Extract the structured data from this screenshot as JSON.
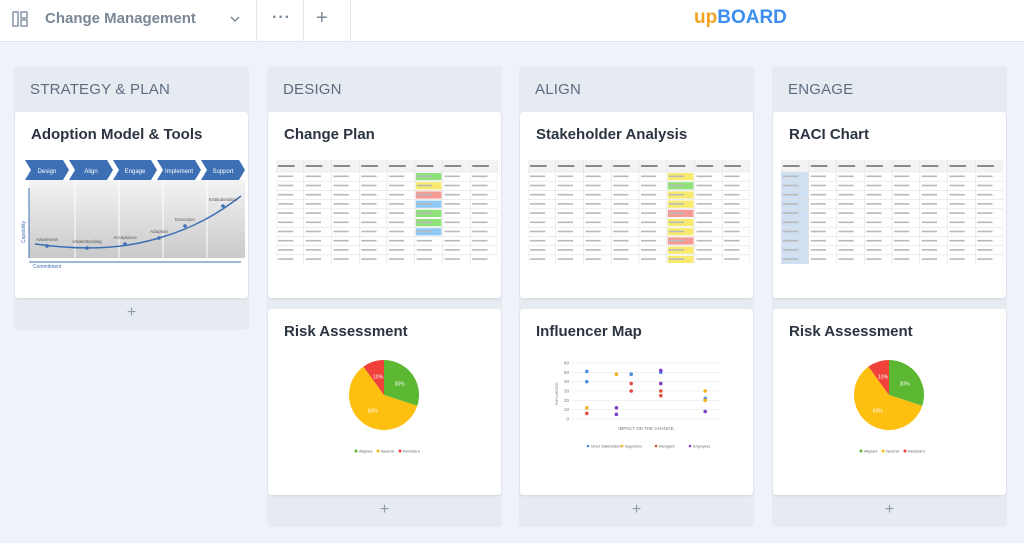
{
  "header": {
    "board_name": "Change Management",
    "logo": [
      "up",
      "BOARD"
    ]
  },
  "columns": [
    {
      "title": "STRATEGY & PLAN",
      "cards": [
        {
          "title": "Adoption Model & Tools",
          "thumbnail": {
            "type": "adoption",
            "steps": [
              "Design",
              "Align",
              "Engage",
              "Implement",
              "Support"
            ],
            "stages": [
              "Awareness",
              "Understanding",
              "Acceptance",
              "Adoption",
              "Execution",
              "Institutionalize"
            ],
            "y_label": "Capability",
            "x_label": "Commitment"
          }
        }
      ]
    },
    {
      "title": "DESIGN",
      "cards": [
        {
          "title": "Change Plan",
          "thumbnail": {
            "type": "table",
            "status_colors": [
              "#8fe27a",
              "#f7ea6e",
              "#f59b95",
              "#8fcaf7",
              "#8fe27a",
              "#8fe27a",
              "#8fcaf7"
            ]
          }
        },
        {
          "title": "Risk Assessment",
          "thumbnail": {
            "type": "pie",
            "values": [
              30,
              60,
              10
            ],
            "value_labels": [
              "30%",
              "60%",
              "10%"
            ],
            "colors": [
              "#5cb832",
              "#fdbf10",
              "#f0413b"
            ],
            "legend": [
              "Aligned",
              "Neutral",
              "Resistant"
            ]
          }
        }
      ]
    },
    {
      "title": "ALIGN",
      "cards": [
        {
          "title": "Stakeholder Analysis",
          "thumbnail": {
            "type": "table",
            "status_colors": [
              "#f7ea6e",
              "#8fe27a",
              "#f7ea6e",
              "#f7ea6e",
              "#f59b95",
              "#f7ea6e",
              "#f7ea6e",
              "#f59b95",
              "#f7ea6e",
              "#f7ea6e"
            ]
          }
        },
        {
          "title": "Influencer Map",
          "thumbnail": {
            "type": "scatter",
            "x_label": "IMPACT ON THE CHANGE",
            "y_label": "INFLUENCE",
            "xlim": [
              0,
              10
            ],
            "ylim": [
              0,
              60
            ],
            "yticks": [
              0,
              10,
              20,
              30,
              40,
              50,
              60
            ],
            "series": [
              {
                "name": "Direct stakeholders",
                "color": "#4a8fe0",
                "x": [
                  1,
                  1,
                  4,
                  6,
                  9
                ],
                "y": [
                  51,
                  40,
                  48,
                  50,
                  22
                ]
              },
              {
                "name": "Supporters",
                "color": "#f5b020",
                "x": [
                  3,
                  6,
                  9,
                  1,
                  9
                ],
                "y": [
                  48,
                  38,
                  30,
                  12,
                  20
                ]
              },
              {
                "name": "Managers",
                "color": "#e2493f",
                "x": [
                  4,
                  4,
                  6,
                  6,
                  1
                ],
                "y": [
                  38,
                  30,
                  30,
                  25,
                  6
                ]
              },
              {
                "name": "Employees",
                "color": "#7b3fc4",
                "x": [
                  6,
                  3,
                  3,
                  9,
                  6
                ],
                "y": [
                  52,
                  12,
                  5,
                  8,
                  38
                ]
              }
            ]
          }
        }
      ]
    },
    {
      "title": "ENGAGE",
      "cards": [
        {
          "title": "RACI Chart",
          "thumbnail": {
            "type": "table",
            "first_column_color": "#cfe0f3"
          }
        },
        {
          "title": "Risk Assessment",
          "thumbnail": {
            "type": "pie",
            "values": [
              30,
              60,
              10
            ],
            "value_labels": [
              "30%",
              "60%",
              "10%"
            ],
            "colors": [
              "#5cb832",
              "#fdbf10",
              "#f0413b"
            ],
            "legend": [
              "Aligned",
              "Neutral",
              "Resistant"
            ]
          }
        }
      ]
    }
  ]
}
